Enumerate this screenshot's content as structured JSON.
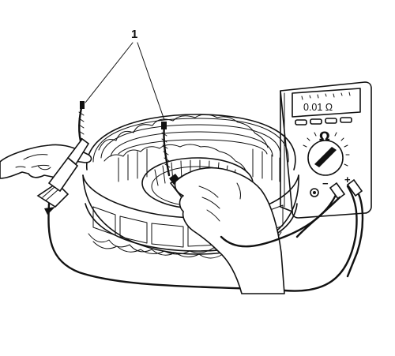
{
  "figure": {
    "callout_number": "1",
    "meter": {
      "display_reading": "0.01 Ω",
      "dial_symbol": "Ω",
      "negative_terminal": "−",
      "positive_terminal": "+"
    },
    "colors": {
      "ink": "#111111",
      "background": "#ffffff"
    }
  }
}
